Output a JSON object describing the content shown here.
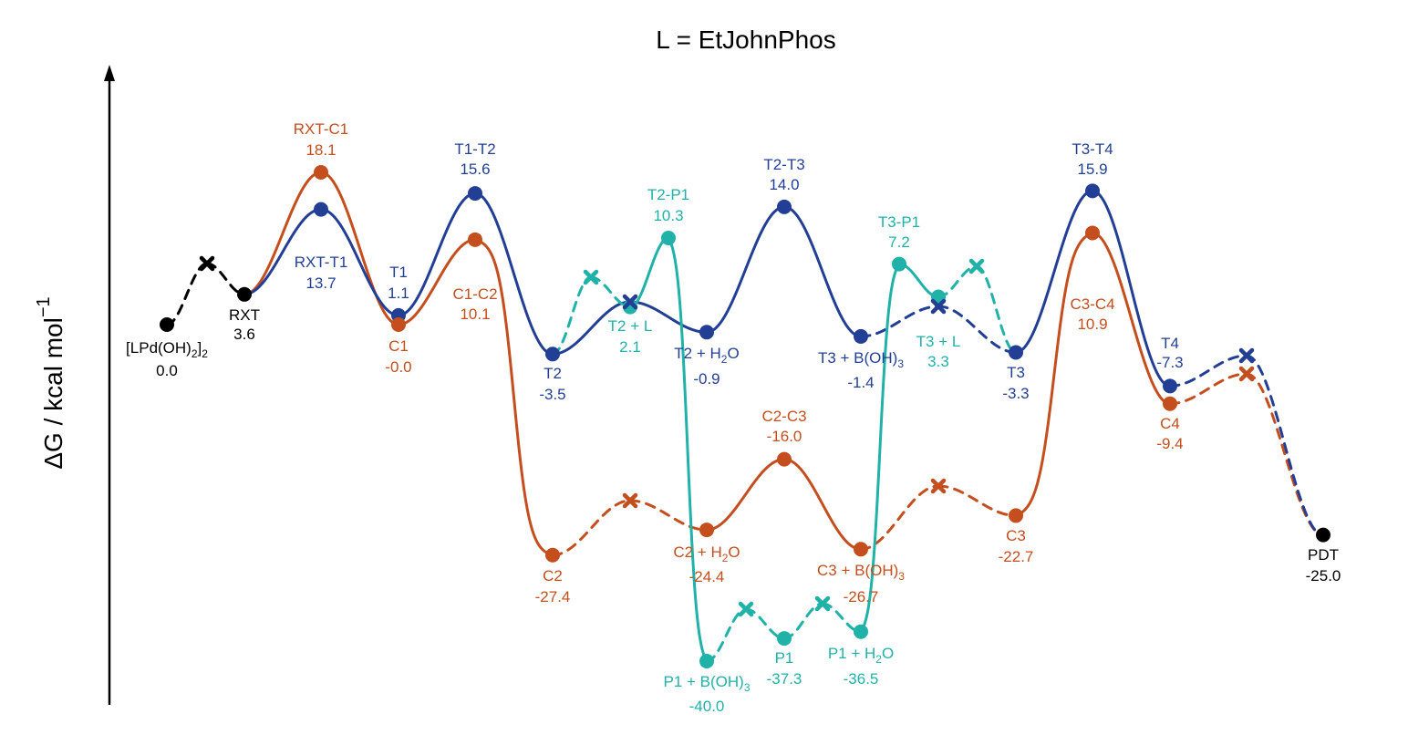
{
  "chart_data": {
    "type": "line",
    "title": "L = EtJohnPhos",
    "ylabel": "ΔG / kcal mol",
    "ylabel_superscript": "−1",
    "colors": {
      "orange": "#c44e1e",
      "blue": "#233f95",
      "teal": "#20b2a8",
      "black": "#000000"
    },
    "nodes": [
      {
        "id": "lpd",
        "name": "[LPd(OH)",
        "sub": "2",
        "name_after": "]",
        "sub2": "2",
        "value": 0.0,
        "value_text": "0.0",
        "color": "black"
      },
      {
        "id": "rxt",
        "name": "RXT",
        "value": 3.6,
        "value_text": "3.6",
        "color": "black"
      },
      {
        "id": "rxt_c1",
        "name": "RXT-C1",
        "value": 18.1,
        "value_text": "18.1",
        "color": "orange"
      },
      {
        "id": "rxt_t1",
        "name": "RXT-T1",
        "value": 13.7,
        "value_text": "13.7",
        "color": "blue"
      },
      {
        "id": "t1",
        "name": "T1",
        "value": 1.1,
        "value_text": "1.1",
        "color": "blue"
      },
      {
        "id": "c1",
        "name": "C1",
        "value": -0.0,
        "value_text": "-0.0",
        "color": "orange"
      },
      {
        "id": "t1_t2",
        "name": "T1-T2",
        "value": 15.6,
        "value_text": "15.6",
        "color": "blue"
      },
      {
        "id": "c1_c2",
        "name": "C1-C2",
        "value": 10.1,
        "value_text": "10.1",
        "color": "orange"
      },
      {
        "id": "t2",
        "name": "T2",
        "value": -3.5,
        "value_text": "-3.5",
        "color": "blue"
      },
      {
        "id": "c2",
        "name": "C2",
        "value": -27.4,
        "value_text": "-27.4",
        "color": "orange"
      },
      {
        "id": "t2_l",
        "name": "T2 + L",
        "value": 2.1,
        "value_text": "2.1",
        "color": "teal"
      },
      {
        "id": "t2_p1",
        "name": "T2-P1",
        "value": 10.3,
        "value_text": "10.3",
        "color": "teal"
      },
      {
        "id": "t2_h2o",
        "name": "T2 + H",
        "sub": "2",
        "name_after": "O",
        "value": -0.9,
        "value_text": "-0.9",
        "color": "blue"
      },
      {
        "id": "c2_h2o",
        "name": "C2 + H",
        "sub": "2",
        "name_after": "O",
        "value": -24.4,
        "value_text": "-24.4",
        "color": "orange"
      },
      {
        "id": "p1_boh3",
        "name": "P1 + B(OH)",
        "sub": "3",
        "value": -40.0,
        "value_text": "-40.0",
        "color": "teal"
      },
      {
        "id": "t2_t3",
        "name": "T2-T3",
        "value": 14.0,
        "value_text": "14.0",
        "color": "blue"
      },
      {
        "id": "c2_c3",
        "name": "C2-C3",
        "value": -16.0,
        "value_text": "-16.0",
        "color": "orange"
      },
      {
        "id": "p1",
        "name": "P1",
        "value": -37.3,
        "value_text": "-37.3",
        "color": "teal"
      },
      {
        "id": "t3_boh3",
        "name": "T3 + B(OH)",
        "sub": "3",
        "value": -1.4,
        "value_text": "-1.4",
        "color": "blue"
      },
      {
        "id": "c3_boh3",
        "name": "C3 + B(OH)",
        "sub": "3",
        "value": -26.7,
        "value_text": "-26.7",
        "color": "orange"
      },
      {
        "id": "p1_h2o",
        "name": "P1 + H",
        "sub": "2",
        "name_after": "O",
        "value": -36.5,
        "value_text": "-36.5",
        "color": "teal"
      },
      {
        "id": "t3_p1",
        "name": "T3-P1",
        "value": 7.2,
        "value_text": "7.2",
        "color": "teal"
      },
      {
        "id": "t3_l",
        "name": "T3 + L",
        "value": 3.3,
        "value_text": "3.3",
        "color": "teal"
      },
      {
        "id": "t3",
        "name": "T3",
        "value": -3.3,
        "value_text": "-3.3",
        "color": "blue"
      },
      {
        "id": "c3",
        "name": "C3",
        "value": -22.7,
        "value_text": "-22.7",
        "color": "orange"
      },
      {
        "id": "t3_t4",
        "name": "T3-T4",
        "value": 15.9,
        "value_text": "15.9",
        "color": "blue"
      },
      {
        "id": "c3_c4",
        "name": "C3-C4",
        "value": 10.9,
        "value_text": "10.9",
        "color": "orange"
      },
      {
        "id": "t4",
        "name": "T4",
        "value": -7.3,
        "value_text": "-7.3",
        "color": "blue"
      },
      {
        "id": "c4",
        "name": "C4",
        "value": -9.4,
        "value_text": "-9.4",
        "color": "orange"
      },
      {
        "id": "pdt",
        "name": "PDT",
        "value": -25.0,
        "value_text": "-25.0",
        "color": "black"
      }
    ]
  }
}
